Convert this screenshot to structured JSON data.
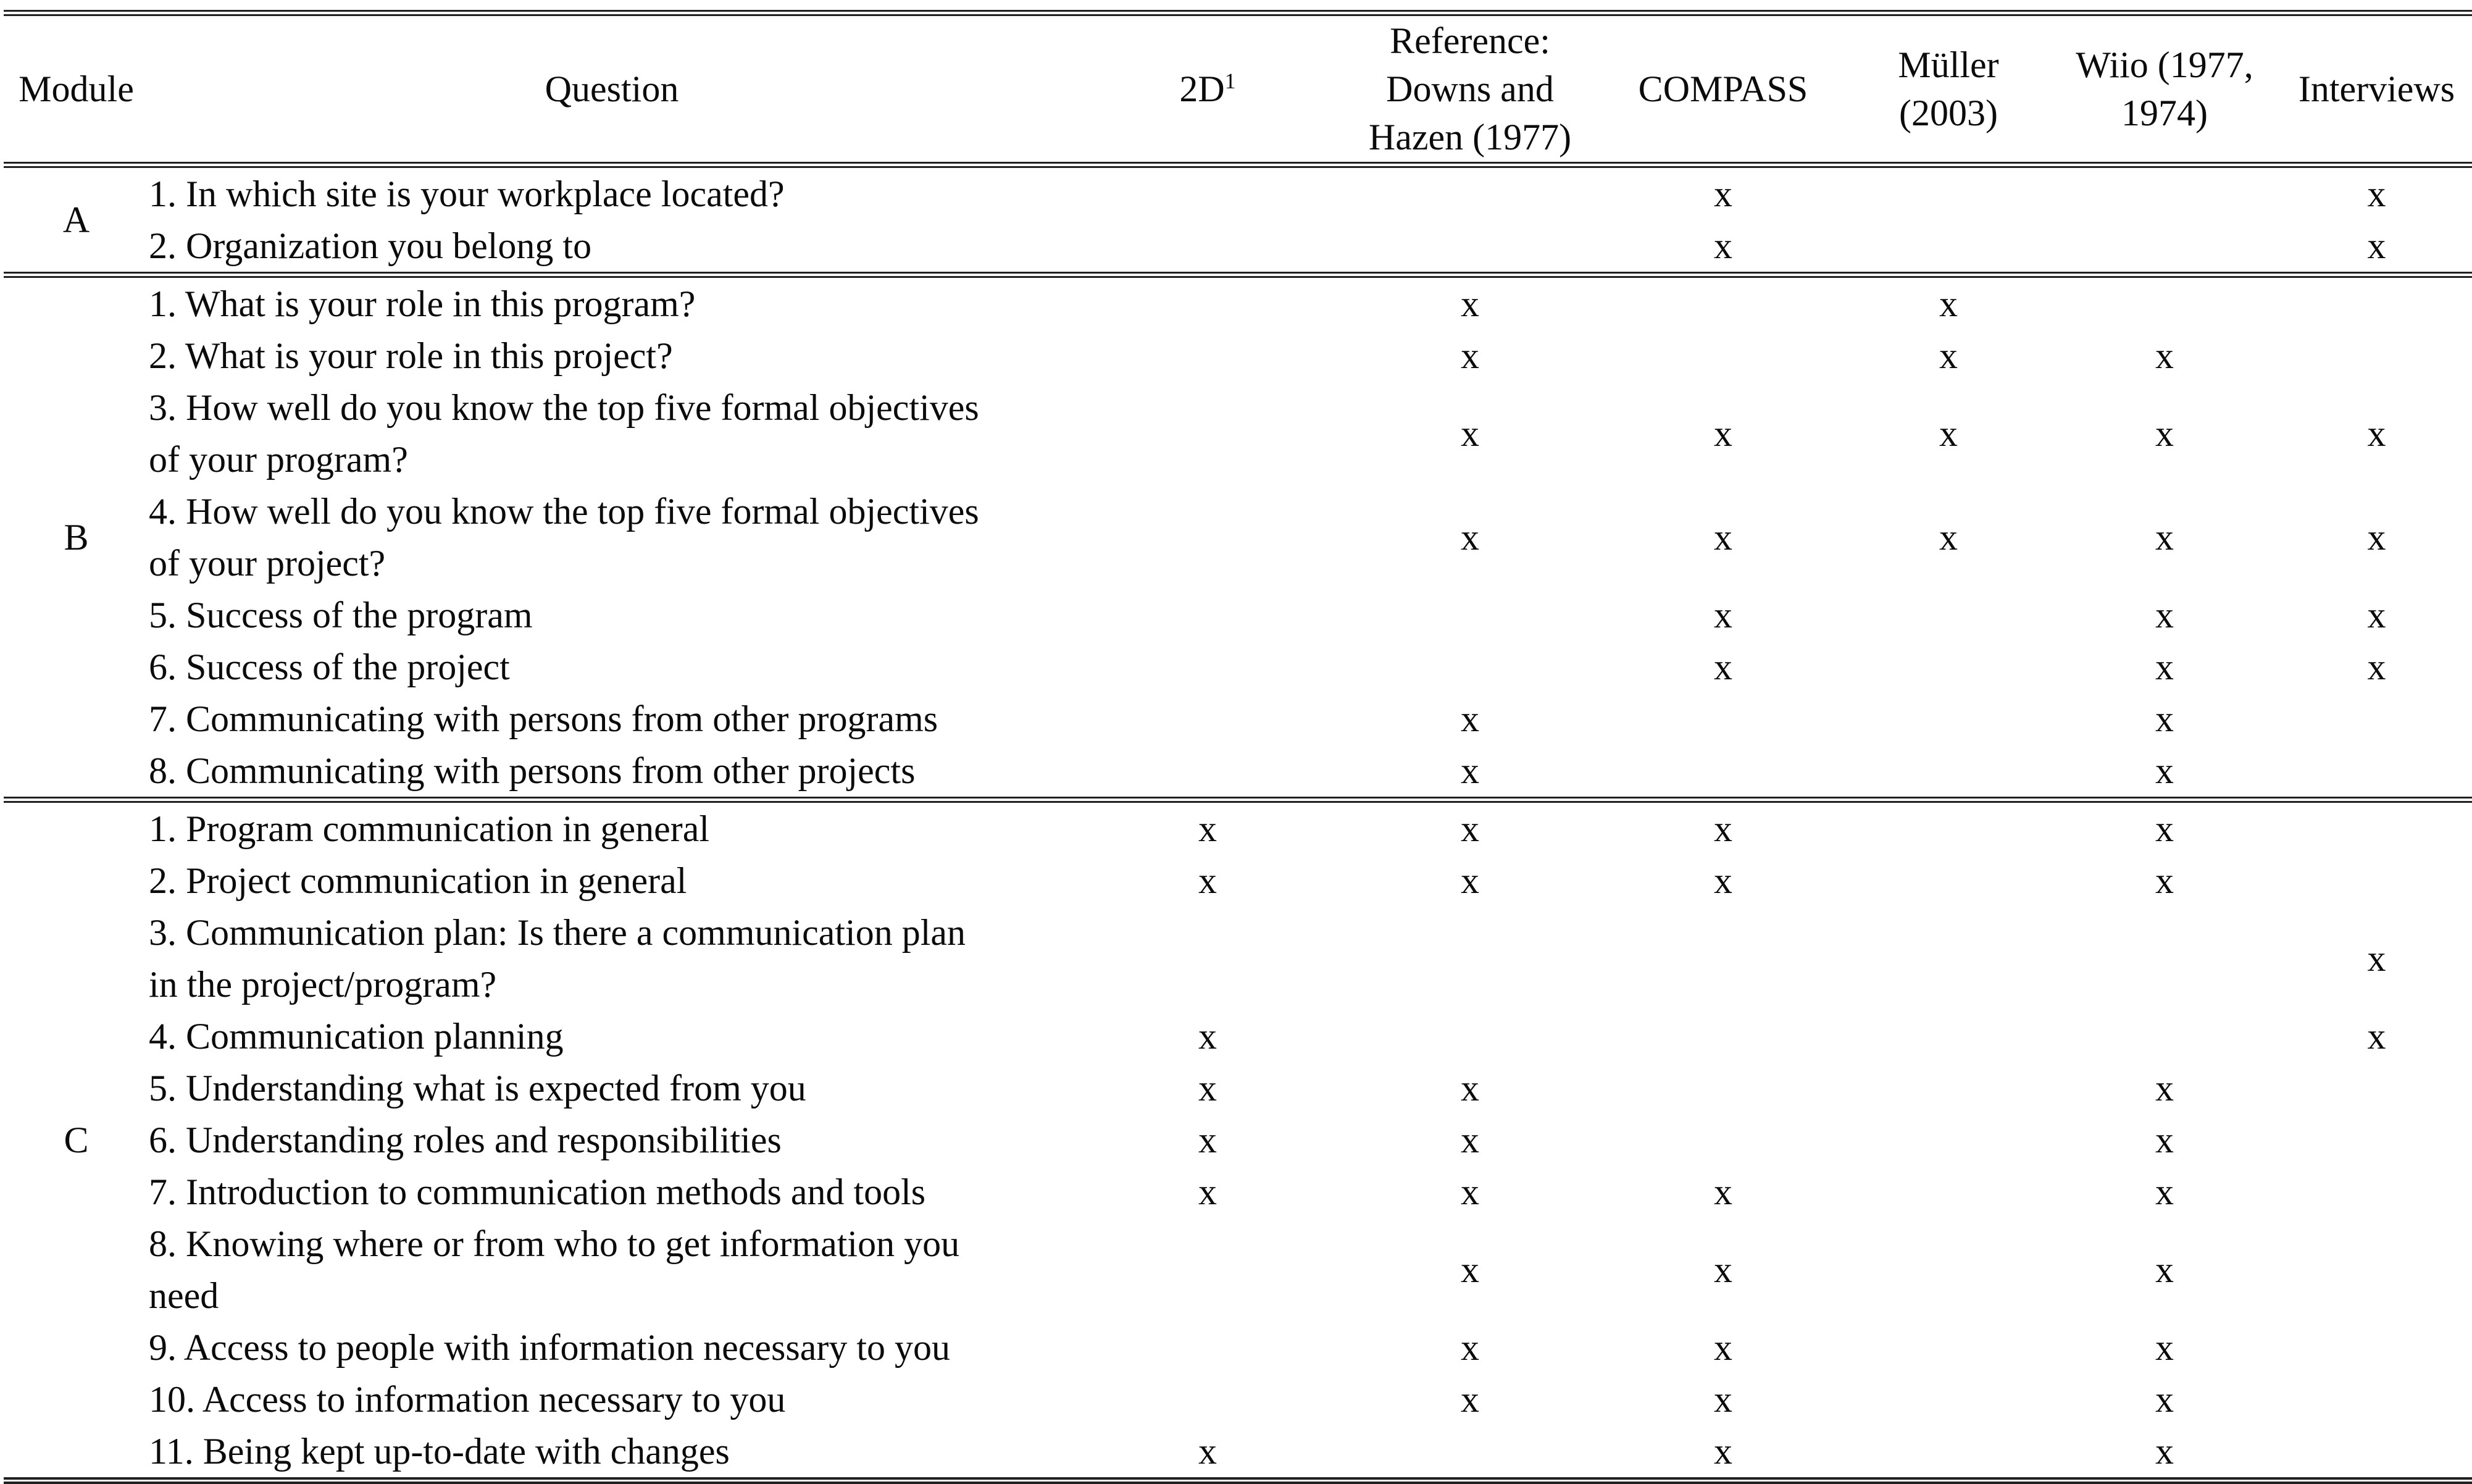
{
  "table": {
    "mark_glyph": "x",
    "rule_color": "#212121",
    "columns": [
      {
        "key": "module",
        "label": "Module"
      },
      {
        "key": "question",
        "label": "Question"
      },
      {
        "key": "2d",
        "label": "2D",
        "superscript": "1"
      },
      {
        "key": "downs",
        "label": "Reference:\nDowns and\nHazen (1977)"
      },
      {
        "key": "compass",
        "label": "COMPASS"
      },
      {
        "key": "muller",
        "label": "Müller\n(2003)"
      },
      {
        "key": "wiio",
        "label": "Wiio (1977,\n1974)"
      },
      {
        "key": "interviews",
        "label": "Interviews"
      }
    ],
    "sections": [
      {
        "module": "A",
        "rows": [
          {
            "question": "1. In which site is your workplace located?",
            "marks": [
              "",
              "",
              "x",
              "",
              "",
              "x"
            ]
          },
          {
            "question": "2. Organization you belong to",
            "marks": [
              "",
              "",
              "x",
              "",
              "",
              "x"
            ]
          }
        ]
      },
      {
        "module": "B",
        "rows": [
          {
            "question": "1. What is your role in this program?",
            "marks": [
              "",
              "x",
              "",
              "x",
              "",
              ""
            ]
          },
          {
            "question": "2. What is your role in this project?",
            "marks": [
              "",
              "x",
              "",
              "x",
              "x",
              ""
            ]
          },
          {
            "question": "3. How well do you know the top five formal objectives\nof your program?",
            "marks": [
              "",
              "x",
              "x",
              "x",
              "x",
              "x"
            ]
          },
          {
            "question": "4. How well do you know the top five formal objectives\nof your project?",
            "marks": [
              "",
              "x",
              "x",
              "x",
              "x",
              "x"
            ]
          },
          {
            "question": "5. Success of the program",
            "marks": [
              "",
              "",
              "x",
              "",
              "x",
              "x"
            ]
          },
          {
            "question": "6. Success of the project",
            "marks": [
              "",
              "",
              "x",
              "",
              "x",
              "x"
            ]
          },
          {
            "question": "7. Communicating with persons from other programs",
            "marks": [
              "",
              "x",
              "",
              "",
              "x",
              ""
            ]
          },
          {
            "question": "8. Communicating with persons from other projects",
            "marks": [
              "",
              "x",
              "",
              "",
              "x",
              ""
            ]
          }
        ]
      },
      {
        "module": "C",
        "rows": [
          {
            "question": "1. Program communication in general",
            "marks": [
              "x",
              "x",
              "x",
              "",
              "x",
              ""
            ]
          },
          {
            "question": "2. Project communication in general",
            "marks": [
              "x",
              "x",
              "x",
              "",
              "x",
              ""
            ]
          },
          {
            "question": "3. Communication plan: Is there a communication plan\nin the project/program?",
            "marks": [
              "",
              "",
              "",
              "",
              "",
              "x"
            ]
          },
          {
            "question": "4. Communication planning",
            "marks": [
              "x",
              "",
              "",
              "",
              "",
              "x"
            ]
          },
          {
            "question": "5. Understanding what is expected from you",
            "marks": [
              "x",
              "x",
              "",
              "",
              "x",
              ""
            ]
          },
          {
            "question": "6. Understanding roles and responsibilities",
            "marks": [
              "x",
              "x",
              "",
              "",
              "x",
              ""
            ]
          },
          {
            "question": "7. Introduction to communication methods and tools",
            "marks": [
              "x",
              "x",
              "x",
              "",
              "x",
              ""
            ]
          },
          {
            "question": "8. Knowing where or from who to get information you\nneed",
            "marks": [
              "",
              "x",
              "x",
              "",
              "x",
              ""
            ]
          },
          {
            "question": "9. Access to people with information necessary to you",
            "marks": [
              "",
              "x",
              "x",
              "",
              "x",
              ""
            ]
          },
          {
            "question": "10. Access to information necessary to you",
            "marks": [
              "",
              "x",
              "x",
              "",
              "x",
              ""
            ]
          },
          {
            "question": "11. Being kept up-to-date with changes",
            "marks": [
              "x",
              "",
              "x",
              "",
              "x",
              ""
            ]
          }
        ]
      }
    ]
  }
}
